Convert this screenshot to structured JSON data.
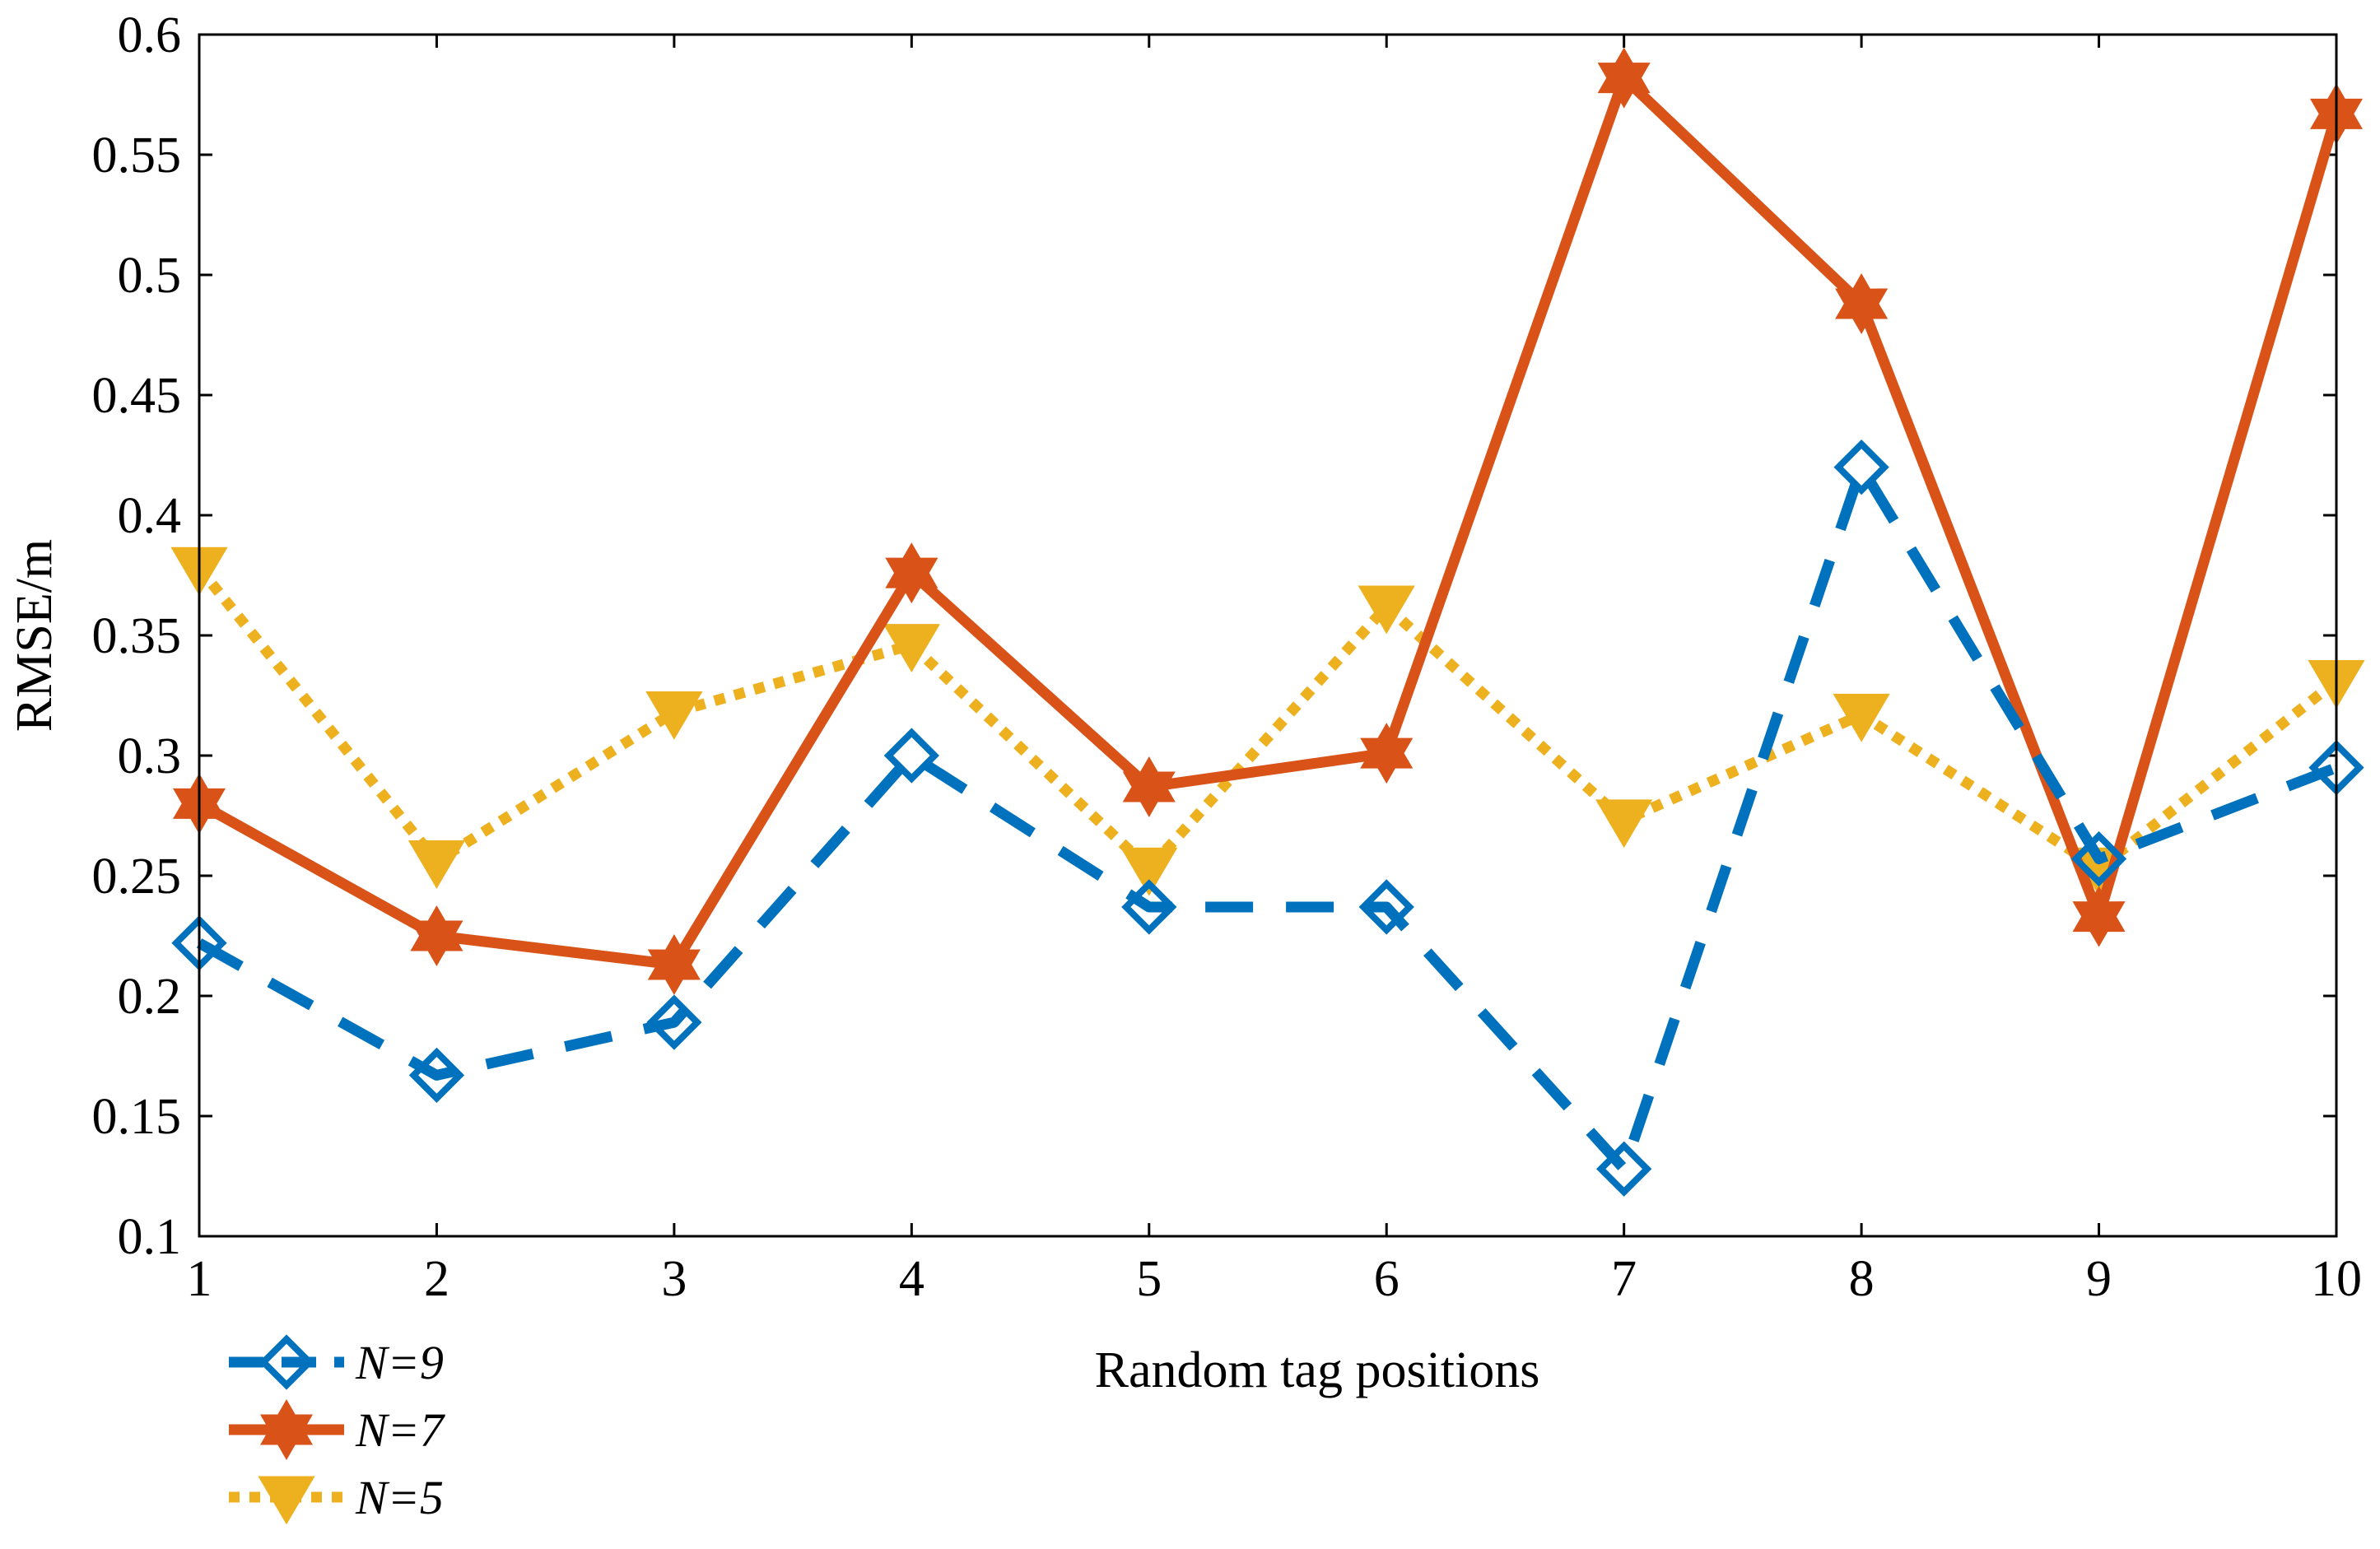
{
  "chart_data": {
    "type": "line",
    "title": "",
    "xlabel": "Random tag positions",
    "ylabel": "RMSE/m",
    "x": [
      1,
      2,
      3,
      4,
      5,
      6,
      7,
      8,
      9,
      10
    ],
    "xlim": [
      1,
      10
    ],
    "ylim": [
      0.1,
      0.6
    ],
    "xticks": [
      1,
      2,
      3,
      4,
      5,
      6,
      7,
      8,
      9,
      10
    ],
    "xtick_labels": [
      "1",
      "2",
      "3",
      "4",
      "5",
      "6",
      "7",
      "8",
      "9",
      "10"
    ],
    "yticks": [
      0.1,
      0.15,
      0.2,
      0.25,
      0.3,
      0.35,
      0.4,
      0.45,
      0.5,
      0.55,
      0.6
    ],
    "ytick_labels": [
      "0.1",
      "0.15",
      "0.2",
      "0.25",
      "0.3",
      "0.35",
      "0.4",
      "0.45",
      "0.5",
      "0.55",
      "0.6"
    ],
    "grid": false,
    "legend_position": "bottom-left, outside axes",
    "series": [
      {
        "name": "N=9",
        "color": "#0072BD",
        "line_style": "dashed",
        "marker": "diamond",
        "values": [
          0.222,
          0.167,
          0.189,
          0.3,
          0.237,
          0.237,
          0.128,
          0.42,
          0.257,
          0.295
        ]
      },
      {
        "name": "N=7",
        "color": "#D95319",
        "line_style": "solid",
        "marker": "hexagram",
        "values": [
          0.28,
          0.225,
          0.213,
          0.376,
          0.287,
          0.301,
          0.582,
          0.488,
          0.233,
          0.567
        ]
      },
      {
        "name": "N=5",
        "color": "#EDB120",
        "line_style": "dotted",
        "marker": "triangle-down",
        "values": [
          0.378,
          0.256,
          0.318,
          0.346,
          0.253,
          0.362,
          0.273,
          0.317,
          0.253,
          0.331
        ]
      }
    ]
  }
}
